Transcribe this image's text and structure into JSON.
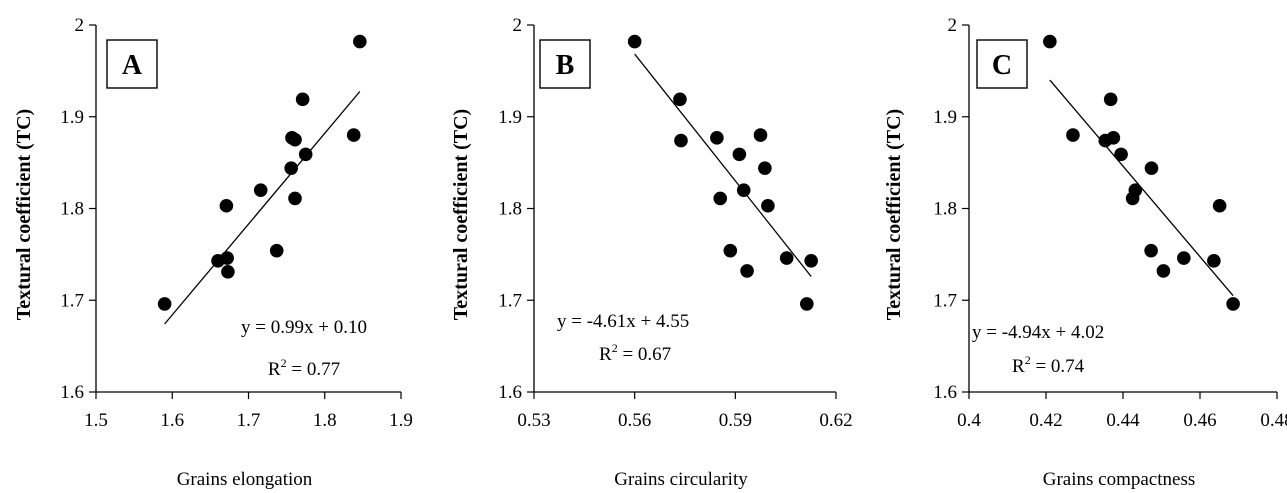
{
  "chart_data": [
    {
      "type": "scatter",
      "panel_label": "A",
      "xlabel": "Grains elongation",
      "ylabel": "Textural coefficient (TC)",
      "xlim": [
        1.5,
        1.9
      ],
      "ylim": [
        1.6,
        2.0
      ],
      "xticks": [
        "1.5",
        "1.6",
        "1.7",
        "1.8",
        "1.9"
      ],
      "yticks": [
        "1.6",
        "1.7",
        "1.8",
        "1.9",
        "2"
      ],
      "points": [
        {
          "x": 1.59,
          "y": 1.696
        },
        {
          "x": 1.66,
          "y": 1.743
        },
        {
          "x": 1.672,
          "y": 1.746
        },
        {
          "x": 1.673,
          "y": 1.731
        },
        {
          "x": 1.671,
          "y": 1.803
        },
        {
          "x": 1.716,
          "y": 1.82
        },
        {
          "x": 1.737,
          "y": 1.754
        },
        {
          "x": 1.756,
          "y": 1.844
        },
        {
          "x": 1.757,
          "y": 1.877
        },
        {
          "x": 1.761,
          "y": 1.875
        },
        {
          "x": 1.761,
          "y": 1.811
        },
        {
          "x": 1.771,
          "y": 1.919
        },
        {
          "x": 1.775,
          "y": 1.859
        },
        {
          "x": 1.838,
          "y": 1.88
        },
        {
          "x": 1.846,
          "y": 1.982
        }
      ],
      "trendline": {
        "x": [
          1.59,
          1.846
        ],
        "y": [
          1.6741,
          1.9275
        ]
      },
      "equation": "y = 0.99x + 0.10",
      "r2_prefix": "R",
      "r2_value": " = 0.77"
    },
    {
      "type": "scatter",
      "panel_label": "B",
      "xlabel": "Grains circularity",
      "ylabel": "Textural coefficient (TC)",
      "xlim": [
        0.53,
        0.62
      ],
      "ylim": [
        1.6,
        2.0
      ],
      "xticks": [
        "0.53",
        "0.56",
        "0.59",
        "0.62"
      ],
      "yticks": [
        "1.6",
        "1.7",
        "1.8",
        "1.9",
        "2"
      ],
      "points": [
        {
          "x": 0.56,
          "y": 1.982
        },
        {
          "x": 0.5735,
          "y": 1.919
        },
        {
          "x": 0.5738,
          "y": 1.874
        },
        {
          "x": 0.5845,
          "y": 1.877
        },
        {
          "x": 0.5855,
          "y": 1.811
        },
        {
          "x": 0.5885,
          "y": 1.754
        },
        {
          "x": 0.5912,
          "y": 1.859
        },
        {
          "x": 0.5925,
          "y": 1.82
        },
        {
          "x": 0.5935,
          "y": 1.732
        },
        {
          "x": 0.5975,
          "y": 1.88
        },
        {
          "x": 0.5988,
          "y": 1.844
        },
        {
          "x": 0.5997,
          "y": 1.803
        },
        {
          "x": 0.6053,
          "y": 1.746
        },
        {
          "x": 0.6113,
          "y": 1.696
        },
        {
          "x": 0.6126,
          "y": 1.743
        }
      ],
      "trendline": {
        "x": [
          0.56,
          0.6126
        ],
        "y": [
          1.9684,
          1.7259
        ]
      },
      "equation": "y = -4.61x + 4.55",
      "r2_prefix": "R",
      "r2_value": " = 0.67"
    },
    {
      "type": "scatter",
      "panel_label": "C",
      "xlabel": "Grains compactness",
      "ylabel": "Textural coefficient (TC)",
      "xlim": [
        0.4,
        0.48
      ],
      "ylim": [
        1.6,
        2.0
      ],
      "xticks": [
        "0.4",
        "0.42",
        "0.44",
        "0.46",
        "0.48"
      ],
      "yticks": [
        "1.6",
        "1.7",
        "1.8",
        "1.9",
        "2"
      ],
      "points": [
        {
          "x": 0.421,
          "y": 1.982
        },
        {
          "x": 0.427,
          "y": 1.88
        },
        {
          "x": 0.4354,
          "y": 1.874
        },
        {
          "x": 0.4368,
          "y": 1.919
        },
        {
          "x": 0.4375,
          "y": 1.877
        },
        {
          "x": 0.4395,
          "y": 1.859
        },
        {
          "x": 0.4425,
          "y": 1.811
        },
        {
          "x": 0.4432,
          "y": 1.82
        },
        {
          "x": 0.4474,
          "y": 1.844
        },
        {
          "x": 0.4473,
          "y": 1.754
        },
        {
          "x": 0.4505,
          "y": 1.732
        },
        {
          "x": 0.4558,
          "y": 1.746
        },
        {
          "x": 0.4636,
          "y": 1.743
        },
        {
          "x": 0.4651,
          "y": 1.803
        },
        {
          "x": 0.4686,
          "y": 1.696
        }
      ],
      "trendline": {
        "x": [
          0.421,
          0.4686
        ],
        "y": [
          1.94,
          1.705
        ]
      },
      "equation": "y = -4.94x + 4.02",
      "r2_prefix": "R",
      "r2_value": " = 0.74"
    }
  ]
}
